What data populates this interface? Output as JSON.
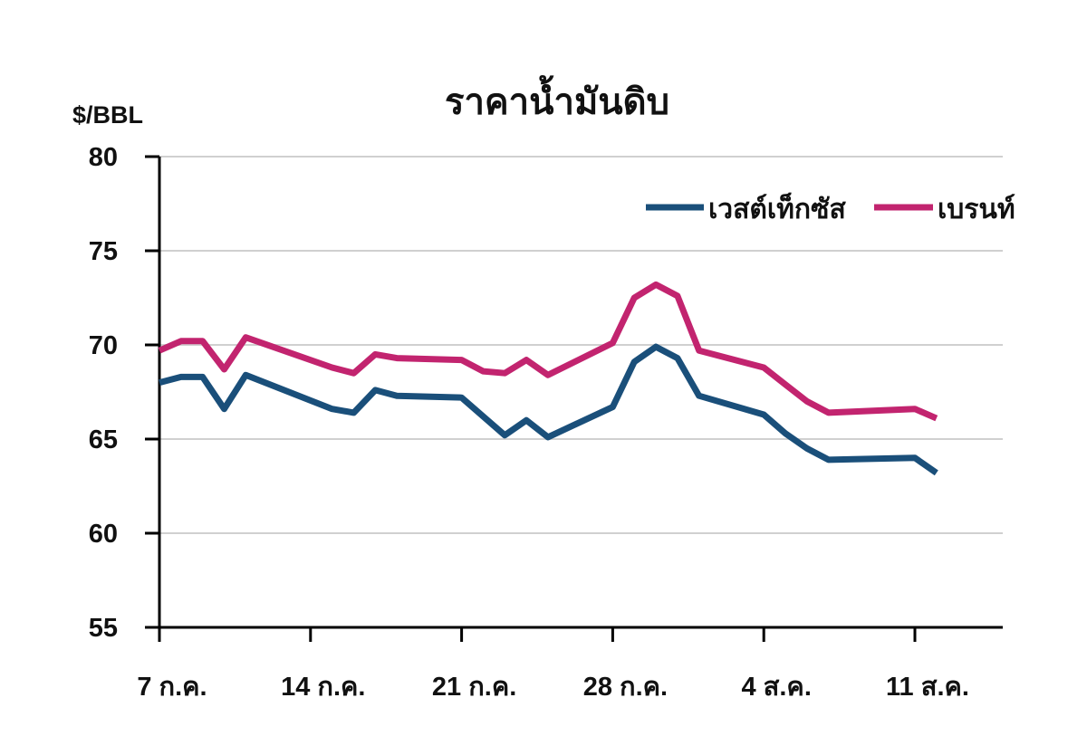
{
  "title": "ราคาน้ำมันดิบ",
  "y_unit": "$/BBL",
  "legend": [
    {
      "label": "เวสต์เท็กซัส",
      "color": "#1a4f7a"
    },
    {
      "label": "เบรนท์",
      "color": "#c2246f"
    }
  ],
  "chart_data": {
    "type": "line",
    "title": "ราคาน้ำมันดิบ",
    "xlabel": "",
    "ylabel": "$/BBL",
    "ylim": [
      55,
      80
    ],
    "yticks": [
      55,
      60,
      65,
      70,
      75,
      80
    ],
    "x_tick_labels": [
      "7 ก.ค.",
      "14 ก.ค.",
      "21 ก.ค.",
      "28 ก.ค.",
      "4 ส.ค.",
      "11 ส.ค."
    ],
    "x_tick_days": [
      0,
      7,
      14,
      21,
      28,
      35
    ],
    "x_range_days": [
      0,
      39
    ],
    "grid": "horizontal",
    "legend_position": "top-right",
    "x_day_offsets": [
      0,
      1,
      2,
      3,
      4,
      8,
      9,
      10,
      11,
      14,
      15,
      16,
      17,
      18,
      21,
      22,
      23,
      24,
      25,
      28,
      29,
      30,
      31,
      35,
      36
    ],
    "series": [
      {
        "name": "เวสต์เท็กซัส",
        "color": "#1a4f7a",
        "values": [
          68.0,
          68.3,
          68.3,
          66.6,
          68.4,
          66.6,
          66.4,
          67.6,
          67.3,
          67.2,
          66.2,
          65.2,
          66.0,
          65.1,
          66.7,
          69.1,
          69.9,
          69.3,
          67.3,
          66.3,
          65.3,
          64.5,
          63.9,
          64.0,
          63.2
        ]
      },
      {
        "name": "เบรนท์",
        "color": "#c2246f",
        "values": [
          69.7,
          70.2,
          70.2,
          68.7,
          70.4,
          68.8,
          68.5,
          69.5,
          69.3,
          69.2,
          68.6,
          68.5,
          69.2,
          68.4,
          70.1,
          72.5,
          73.2,
          72.6,
          69.7,
          68.8,
          67.9,
          67.0,
          66.4,
          66.6,
          66.1
        ]
      }
    ]
  }
}
